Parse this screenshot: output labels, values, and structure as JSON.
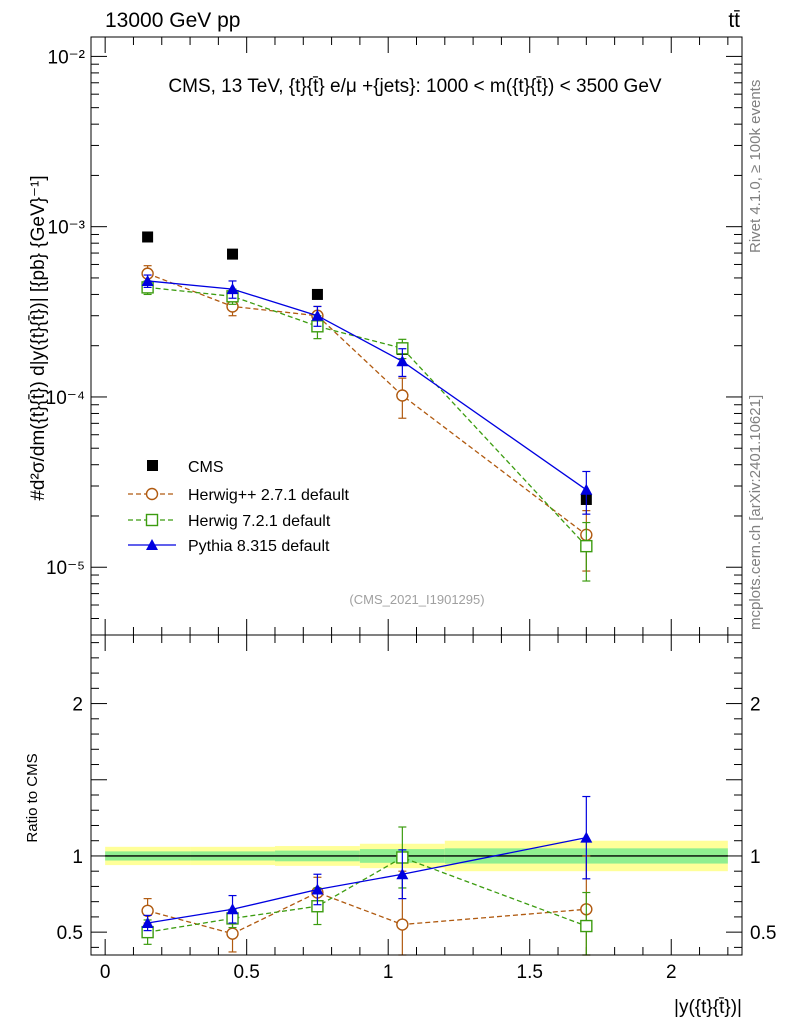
{
  "header": {
    "left": "13000 GeV pp",
    "right": "tt̄"
  },
  "side": {
    "rivet": "Rivet 4.1.0, ≥ 100k events",
    "mcplots": "mcplots.cern.ch [arXiv:2401.10621]"
  },
  "chart_data": [
    {
      "type": "scatter",
      "panel": "main",
      "title": "CMS, 13 TeV, {t}{t̄} e/μ +{jets}: 1000 < m({t}{t̄}) < 3500 GeV",
      "ylabel": "#d²σ/dm({t}{t̄}) d|y({t}{t̄})| [{pb} {GeV}⁻¹]",
      "yscale": "log",
      "ylim": [
        4e-06,
        0.013
      ],
      "xlim": [
        -0.05,
        2.25
      ],
      "yticks": [
        {
          "value": 1e-05,
          "label": "10⁻⁵"
        },
        {
          "value": 0.0001,
          "label": "10⁻⁴"
        },
        {
          "value": 0.001,
          "label": "10⁻³"
        },
        {
          "value": 0.01,
          "label": "10⁻²"
        }
      ],
      "watermark": "(CMS_2021_I1901295)",
      "x": [
        0.15,
        0.45,
        0.75,
        1.05,
        1.7
      ],
      "series": [
        {
          "name": "CMS",
          "legend": "CMS",
          "color": "#000000",
          "marker": "square-filled",
          "line": "none",
          "values": [
            0.00087,
            0.00069,
            0.0004,
            0.00019,
            2.5e-05
          ],
          "err": [
            0,
            0,
            0,
            0,
            0
          ]
        },
        {
          "name": "herwigpp",
          "legend": "Herwig++ 2.7.1 default",
          "color": "#b05a10",
          "marker": "circle-open",
          "line": "dashed",
          "values": [
            0.00053,
            0.00034,
            0.0003,
            0.000102,
            1.55e-05
          ],
          "err": [
            6e-05,
            4e-05,
            4e-05,
            2.7e-05,
            6e-06
          ]
        },
        {
          "name": "herwig7",
          "legend": "Herwig 7.2.1 default",
          "color": "#3c9c10",
          "marker": "square-open",
          "line": "dashed",
          "values": [
            0.00044,
            0.00039,
            0.00026,
            0.000193,
            1.33e-05
          ],
          "err": [
            4e-05,
            4e-05,
            4e-05,
            2.5e-05,
            5e-06
          ]
        },
        {
          "name": "pythia",
          "legend": "Pythia 8.315 default",
          "color": "#0000e0",
          "marker": "triangle-filled",
          "line": "solid",
          "values": [
            0.00048,
            0.00043,
            0.0003,
            0.000162,
            2.85e-05
          ],
          "err": [
            4e-05,
            5e-05,
            4e-05,
            3e-05,
            8e-06
          ]
        }
      ]
    },
    {
      "type": "line",
      "panel": "ratio",
      "ylabel": "Ratio to CMS",
      "xlabel": "|y({t}{t̄})|",
      "ylim": [
        0.35,
        2.45
      ],
      "xlim": [
        -0.05,
        2.25
      ],
      "xticks": [
        {
          "value": 0,
          "label": "0"
        },
        {
          "value": 0.5,
          "label": "0.5"
        },
        {
          "value": 1,
          "label": "1"
        },
        {
          "value": 1.5,
          "label": "1.5"
        },
        {
          "value": 2,
          "label": "2"
        }
      ],
      "yticks": [
        {
          "value": 0.5,
          "label": "0.5"
        },
        {
          "value": 1,
          "label": "1"
        },
        {
          "value": 2,
          "label": "2"
        }
      ],
      "bands": {
        "bin_edges": [
          0,
          0.3,
          0.6,
          0.9,
          1.2,
          2.2
        ],
        "outer": [
          [
            0.94,
            1.06
          ],
          [
            0.94,
            1.06
          ],
          [
            0.935,
            1.065
          ],
          [
            0.92,
            1.08
          ],
          [
            0.9,
            1.1
          ]
        ],
        "inner": [
          [
            0.97,
            1.03
          ],
          [
            0.97,
            1.03
          ],
          [
            0.965,
            1.035
          ],
          [
            0.955,
            1.045
          ],
          [
            0.95,
            1.05
          ]
        ],
        "outer_color": "#ffff99",
        "inner_color": "#90ee90"
      },
      "x": [
        0.15,
        0.45,
        0.75,
        1.05,
        1.7
      ],
      "series": [
        {
          "name": "herwigpp",
          "color": "#b05a10",
          "marker": "circle-open",
          "line": "dashed",
          "values": [
            0.64,
            0.49,
            0.76,
            0.55,
            0.65
          ],
          "err": [
            0.08,
            0.12,
            0.1,
            0.35,
            0.35
          ]
        },
        {
          "name": "herwig7",
          "color": "#3c9c10",
          "marker": "square-open",
          "line": "dashed",
          "values": [
            0.5,
            0.59,
            0.67,
            0.99,
            0.54
          ],
          "err": [
            0.08,
            0.06,
            0.12,
            0.2,
            0.22
          ]
        },
        {
          "name": "pythia",
          "color": "#0000e0",
          "marker": "triangle-filled",
          "line": "solid",
          "values": [
            0.56,
            0.65,
            0.78,
            0.88,
            1.12
          ],
          "err": [
            0.05,
            0.09,
            0.1,
            0.16,
            0.27
          ]
        }
      ]
    }
  ]
}
